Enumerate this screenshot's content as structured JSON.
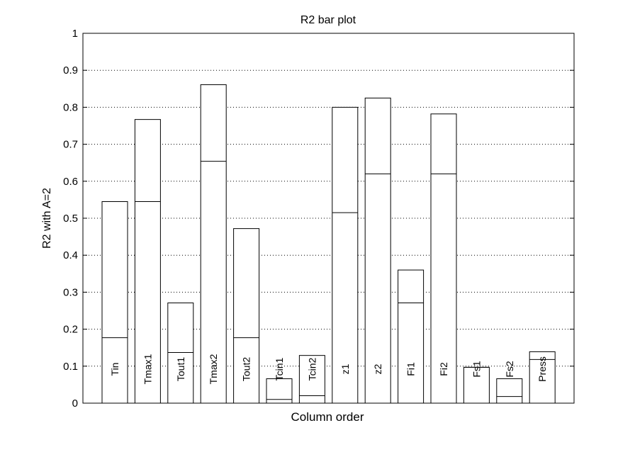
{
  "chart_data": {
    "type": "bar",
    "title": "R2 bar plot",
    "xlabel": "Column order",
    "ylabel": "R2 with A=2",
    "ylim": [
      0,
      1
    ],
    "yticks": [
      0,
      0.1,
      0.2,
      0.3,
      0.4,
      0.5,
      0.6,
      0.7,
      0.8,
      0.9,
      1
    ],
    "ytick_labels": [
      "0",
      "0.1",
      "0.2",
      "0.3",
      "0.4",
      "0.5",
      "0.6",
      "0.7",
      "0.8",
      "0.9",
      "1"
    ],
    "grid": "y-dotted",
    "categories": [
      "Tin",
      "Tmax1",
      "Tout1",
      "Tmax2",
      "Tout2",
      "Tcin1",
      "Tcin2",
      "z1",
      "z2",
      "Fi1",
      "Fi2",
      "Fs1",
      "Fs2",
      "Press"
    ],
    "series": [
      {
        "values": [
          0.545,
          0.767,
          0.271,
          0.861,
          0.472,
          0.066,
          0.129,
          0.8,
          0.825,
          0.36,
          0.782,
          0.097,
          0.066,
          0.139
        ]
      },
      {
        "values": [
          0.177,
          0.545,
          0.137,
          0.654,
          0.177,
          0.01,
          0.02,
          0.515,
          0.62,
          0.271,
          0.62,
          0.097,
          0.018,
          0.118
        ]
      }
    ],
    "colors": {
      "bar_fill": "#ffffff",
      "stroke": "#000000",
      "grid": "#000000"
    }
  }
}
